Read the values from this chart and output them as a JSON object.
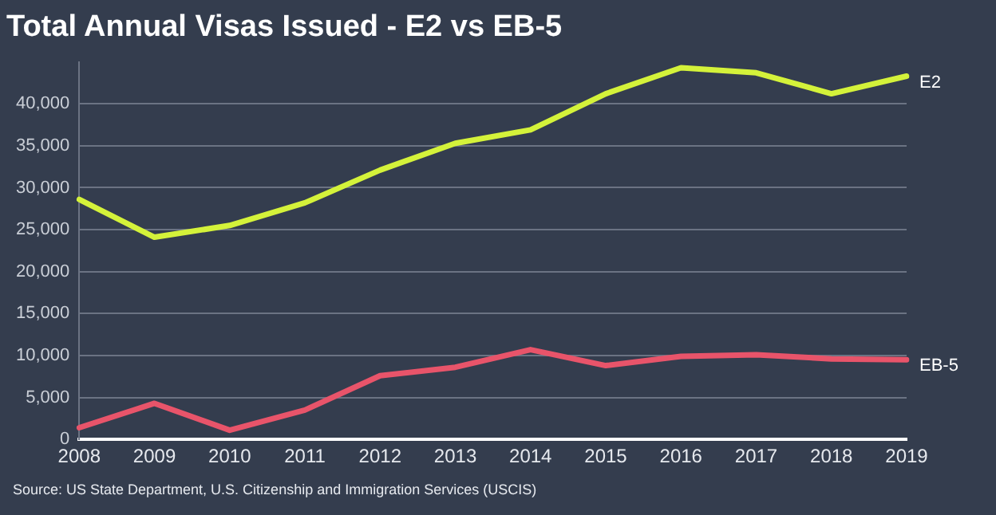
{
  "chart_data": {
    "type": "line",
    "title": "Total Annual Visas Issued - E2 vs EB-5",
    "categories": [
      "2008",
      "2009",
      "2010",
      "2011",
      "2012",
      "2013",
      "2014",
      "2015",
      "2016",
      "2017",
      "2018",
      "2019"
    ],
    "series": [
      {
        "name": "E2",
        "color": "#d4f23a",
        "values": [
          28600,
          24100,
          25500,
          28200,
          32100,
          35300,
          36900,
          41200,
          44300,
          43700,
          41200,
          43300
        ]
      },
      {
        "name": "EB-5",
        "color": "#e8546a",
        "values": [
          1400,
          4300,
          1100,
          3500,
          7600,
          8600,
          10700,
          8800,
          9900,
          10100,
          9600,
          9500
        ]
      }
    ],
    "ylim": [
      0,
      45000
    ],
    "yticks": [
      0,
      {
        "value": 5000,
        "label": "5,000"
      },
      {
        "value": 10000,
        "label": "10,000"
      },
      {
        "value": 15000,
        "label": "15,000"
      },
      {
        "value": 20000,
        "label": "20,000"
      },
      {
        "value": 25000,
        "label": "25,000"
      },
      {
        "value": 30000,
        "label": "30,000"
      },
      {
        "value": 35000,
        "label": "35,000"
      },
      {
        "value": 40000,
        "label": "40,000"
      }
    ],
    "grid": "y",
    "legend": false,
    "marker": "none",
    "line_style": "solid",
    "annotations": [
      "Source: US State Department, U.S. Citizenship and Immigration Services (USCIS)"
    ]
  }
}
